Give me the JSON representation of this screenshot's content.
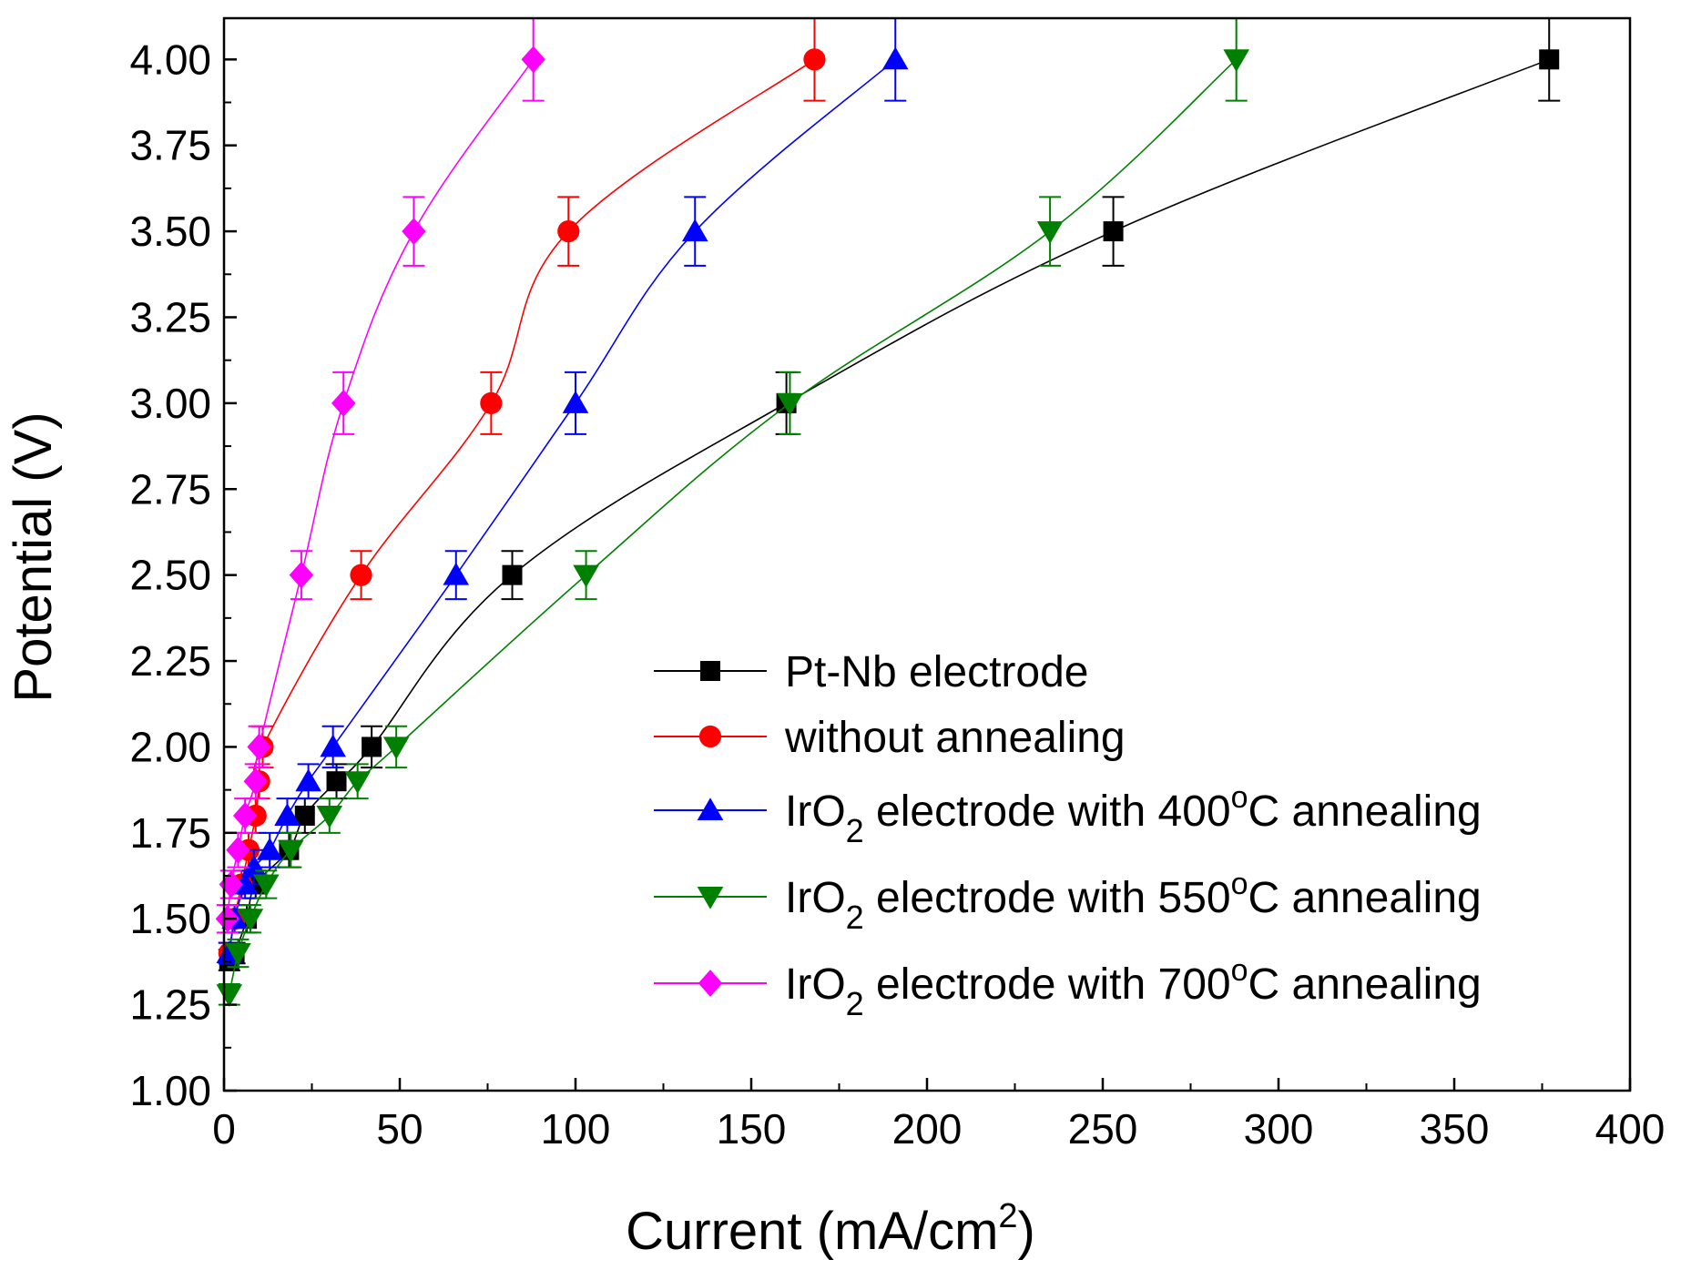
{
  "chart_data": {
    "type": "line",
    "title": "",
    "xlabel": "Current (mA/cm2)",
    "xlabel_main": "Current (mA/cm",
    "xlabel_sup": "2",
    "xlabel_close": ")",
    "ylabel": "Potential (V)",
    "xlim": [
      0,
      400
    ],
    "ylim": [
      1.0,
      4.12
    ],
    "x_ticks": [
      0,
      50,
      100,
      150,
      200,
      250,
      300,
      350,
      400
    ],
    "x_tick_labels": [
      "0",
      "50",
      "100",
      "150",
      "200",
      "250",
      "300",
      "350",
      "400"
    ],
    "y_ticks": [
      1.0,
      1.25,
      1.5,
      1.75,
      2.0,
      2.25,
      2.5,
      2.75,
      3.0,
      3.25,
      3.5,
      3.75,
      4.0
    ],
    "y_tick_labels": [
      "1.00",
      "1.25",
      "1.50",
      "1.75",
      "2.00",
      "2.25",
      "2.50",
      "2.75",
      "3.00",
      "3.25",
      "3.50",
      "3.75",
      "4.00"
    ],
    "grid": false,
    "legend_position": "lower-right",
    "series": [
      {
        "name": "Pt-Nb electrode",
        "label_parts": [
          "Pt-Nb electrode"
        ],
        "color": "#000000",
        "marker": "square",
        "x": [
          1.5,
          3,
          6.5,
          9,
          18.5,
          23,
          32,
          42,
          82,
          160,
          253,
          377
        ],
        "y": [
          1.38,
          1.4,
          1.5,
          1.6,
          1.7,
          1.8,
          1.9,
          2.0,
          2.5,
          3.0,
          3.5,
          4.0
        ],
        "yerr": [
          0.03,
          0.03,
          0.04,
          0.04,
          0.05,
          0.05,
          0.05,
          0.06,
          0.07,
          0.09,
          0.1,
          0.12
        ]
      },
      {
        "name": "without annealing",
        "label_parts": [
          "without annealing"
        ],
        "color": "#ff0000",
        "marker": "circle",
        "x": [
          1.5,
          3,
          5,
          7,
          9,
          10,
          11,
          39,
          76,
          98,
          168
        ],
        "y": [
          1.4,
          1.5,
          1.6,
          1.7,
          1.8,
          1.9,
          2.0,
          2.5,
          3.0,
          3.5,
          4.0
        ],
        "yerr": [
          0.03,
          0.04,
          0.04,
          0.05,
          0.05,
          0.05,
          0.06,
          0.07,
          0.09,
          0.1,
          0.12
        ]
      },
      {
        "name": "IrO2 electrode with 400oC annealing",
        "label_parts": [
          "IrO",
          "2",
          " electrode with 400",
          "o",
          "C annealing"
        ],
        "color": "#0000ff",
        "marker": "triangle-up",
        "x": [
          1.5,
          3,
          6,
          8.5,
          13,
          18,
          24,
          31,
          66,
          100,
          134,
          191
        ],
        "y": [
          1.4,
          1.5,
          1.6,
          1.65,
          1.7,
          1.8,
          1.9,
          2.0,
          2.5,
          3.0,
          3.5,
          4.0
        ],
        "yerr": [
          0.03,
          0.04,
          0.04,
          0.05,
          0.05,
          0.05,
          0.05,
          0.06,
          0.07,
          0.09,
          0.1,
          0.12
        ]
      },
      {
        "name": "IrO2 electrode with 550oC annealing",
        "label_parts": [
          "IrO",
          "2",
          " electrode with 550",
          "o",
          "C annealing"
        ],
        "color": "#008000",
        "marker": "triangle-down",
        "x": [
          1.5,
          4,
          7.5,
          12,
          19,
          30,
          38,
          49,
          103,
          161,
          235,
          288
        ],
        "y": [
          1.28,
          1.4,
          1.5,
          1.6,
          1.7,
          1.8,
          1.9,
          2.0,
          2.5,
          3.0,
          3.5,
          4.0
        ],
        "yerr": [
          0.03,
          0.04,
          0.04,
          0.04,
          0.05,
          0.05,
          0.05,
          0.06,
          0.07,
          0.09,
          0.1,
          0.12
        ]
      },
      {
        "name": "IrO2 electrode with 700oC annealing",
        "label_parts": [
          "IrO",
          "2",
          " electrode with 700",
          "o",
          "C annealing"
        ],
        "color": "#ff00ff",
        "marker": "diamond",
        "x": [
          1,
          2,
          4,
          6,
          9,
          10,
          22,
          34,
          54,
          88
        ],
        "y": [
          1.5,
          1.6,
          1.7,
          1.8,
          1.9,
          2.0,
          2.5,
          3.0,
          3.5,
          4.0
        ],
        "yerr": [
          0.04,
          0.04,
          0.05,
          0.05,
          0.05,
          0.06,
          0.07,
          0.09,
          0.1,
          0.12
        ]
      }
    ]
  }
}
